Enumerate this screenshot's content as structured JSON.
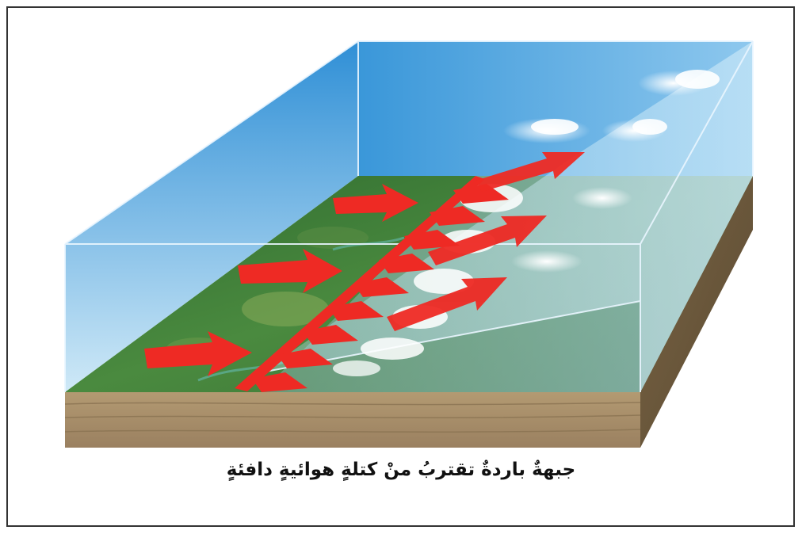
{
  "caption": "جبهةٌ باردةٌ تقتربُ منْ كتلةٍ هوائيةٍ دافئةٍ",
  "colors": {
    "sky_top": "#2f8fd6",
    "sky_bottom": "#cfe9f7",
    "ground_green": "#3e7a3a",
    "soil": "#a88e67",
    "soil_side": "#6e5a3e",
    "front_red": "#ee2a24",
    "frame": "#333333"
  },
  "icons": {
    "arrow": "red-arrow-icon",
    "front": "cold-front-line-icon",
    "cloud": "cloud-icon"
  }
}
